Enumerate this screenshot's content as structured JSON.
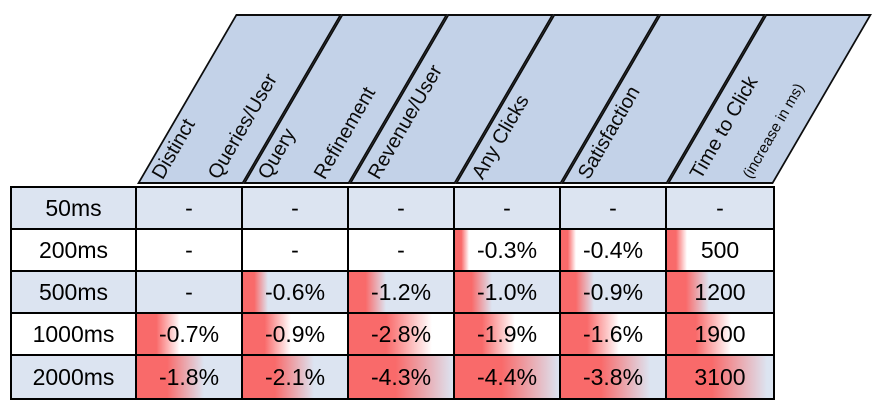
{
  "title_semantics": "Impact of added server delay on search metrics",
  "colors": {
    "header_fill": "#c3d2e8",
    "row_alt_fill": "#dce4f1",
    "row_fill": "#ffffff",
    "bar_red": "#f96a6a",
    "border": "#000000",
    "text": "#000000"
  },
  "header": {
    "columns": [
      {
        "lines": [
          "Distinct",
          "Queries/User"
        ]
      },
      {
        "lines": [
          "Query",
          "Refinement"
        ]
      },
      {
        "lines": [
          "Revenue/User"
        ]
      },
      {
        "lines": [
          "Any Clicks"
        ]
      },
      {
        "lines": [
          "Satisfaction"
        ]
      },
      {
        "lines": [
          "Time to Click",
          "(increase in ms)"
        ]
      }
    ]
  },
  "table": {
    "rows": [
      {
        "label": "50ms",
        "alt": true,
        "cells": [
          {
            "text": "-",
            "bar": 0
          },
          {
            "text": "-",
            "bar": 0
          },
          {
            "text": "-",
            "bar": 0
          },
          {
            "text": "-",
            "bar": 0
          },
          {
            "text": "-",
            "bar": 0
          },
          {
            "text": "-",
            "bar": 0
          }
        ]
      },
      {
        "label": "200ms",
        "alt": false,
        "cells": [
          {
            "text": "-",
            "bar": 0
          },
          {
            "text": "-",
            "bar": 0
          },
          {
            "text": "-",
            "bar": 0
          },
          {
            "text": "-0.3%",
            "bar": 0.13
          },
          {
            "text": "-0.4%",
            "bar": 0.14
          },
          {
            "text": "500",
            "bar": 0.19
          }
        ]
      },
      {
        "label": "500ms",
        "alt": true,
        "cells": [
          {
            "text": "-",
            "bar": 0
          },
          {
            "text": "-0.6%",
            "bar": 0.24
          },
          {
            "text": "-1.2%",
            "bar": 0.36
          },
          {
            "text": "-1.0%",
            "bar": 0.36
          },
          {
            "text": "-0.9%",
            "bar": 0.32
          },
          {
            "text": "1200",
            "bar": 0.4
          }
        ]
      },
      {
        "label": "1000ms",
        "alt": false,
        "cells": [
          {
            "text": "-0.7%",
            "bar": 0.41
          },
          {
            "text": "-0.9%",
            "bar": 0.46
          },
          {
            "text": "-2.8%",
            "bar": 0.8
          },
          {
            "text": "-1.9%",
            "bar": 0.58
          },
          {
            "text": "-1.6%",
            "bar": 0.56
          },
          {
            "text": "1900",
            "bar": 0.6
          }
        ]
      },
      {
        "label": "2000ms",
        "alt": true,
        "cells": [
          {
            "text": "-1.8%",
            "bar": 0.64
          },
          {
            "text": "-2.1%",
            "bar": 0.68
          },
          {
            "text": "-4.3%",
            "bar": 1.0
          },
          {
            "text": "-4.4%",
            "bar": 1.0
          },
          {
            "text": "-3.8%",
            "bar": 0.86
          },
          {
            "text": "3100",
            "bar": 0.94
          }
        ]
      }
    ]
  },
  "chart_data": {
    "type": "table",
    "title": "Effect of added latency on search metrics (red data bars show magnitude of degradation)",
    "columns": [
      "Distinct Queries/User",
      "Query Refinement",
      "Revenue/User",
      "Any Clicks",
      "Satisfaction",
      "Time to Click (increase in ms)"
    ],
    "rows": [
      "50ms",
      "200ms",
      "500ms",
      "1000ms",
      "2000ms"
    ],
    "values": [
      [
        "-",
        "-",
        "-",
        "-",
        "-",
        "-"
      ],
      [
        "-",
        "-",
        "-",
        "-0.3%",
        "-0.4%",
        "500"
      ],
      [
        "-",
        "-0.6%",
        "-1.2%",
        "-1.0%",
        "-0.9%",
        "1200"
      ],
      [
        "-0.7%",
        "-0.9%",
        "-2.8%",
        "-1.9%",
        "-1.6%",
        "1900"
      ],
      [
        "-1.8%",
        "-2.1%",
        "-4.3%",
        "-4.4%",
        "-3.8%",
        "3100"
      ]
    ],
    "legend_position": "none",
    "grid": true
  }
}
